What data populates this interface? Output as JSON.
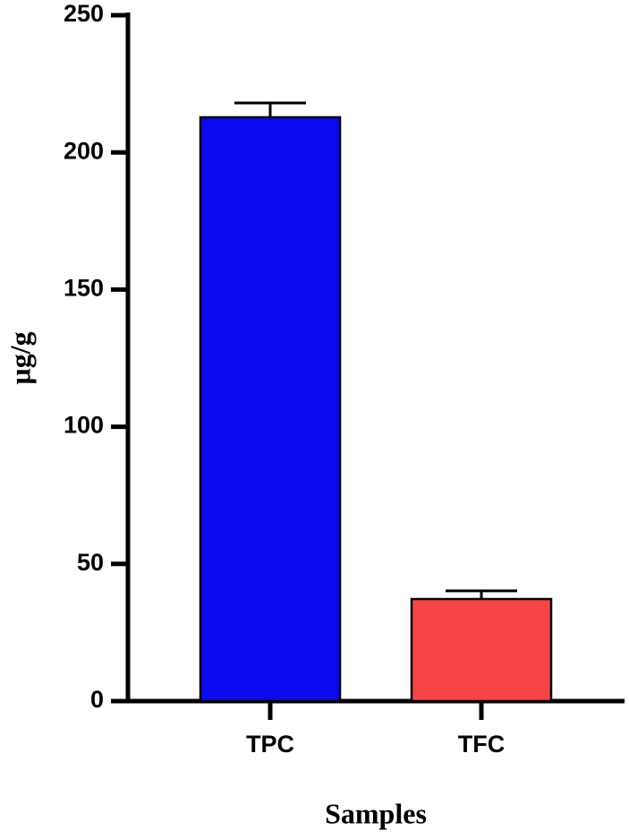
{
  "chart_data": {
    "type": "bar",
    "x_label": "Samples",
    "y_label": "µg/g",
    "categories": [
      "TPC",
      "TFC"
    ],
    "values": [
      212.8,
      37.2
    ],
    "errors": [
      5.2,
      3.0
    ],
    "colors": [
      "#0a0af0",
      "#f84444"
    ],
    "ylim": [
      0,
      250
    ],
    "yticks": [
      0,
      50,
      100,
      150,
      200,
      250
    ],
    "grid": false
  }
}
